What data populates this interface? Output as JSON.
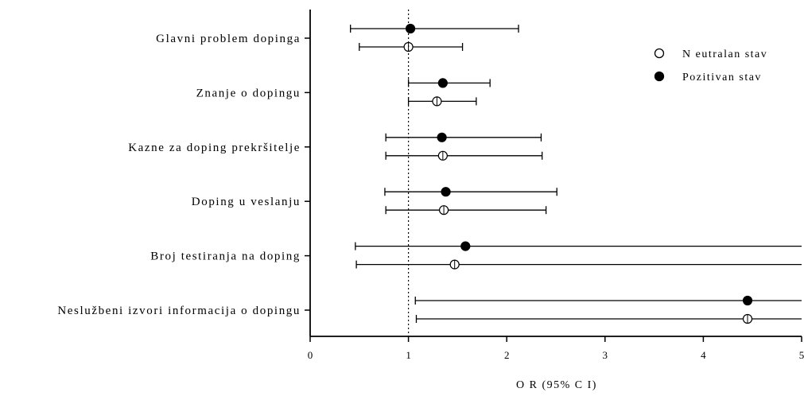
{
  "chart_data": {
    "type": "forest",
    "xlabel": "O R  (95% C I)",
    "xlim": [
      0,
      5
    ],
    "xticks": [
      "0",
      "1",
      "2",
      "3",
      "4",
      "5"
    ],
    "reference_line": 1,
    "categories": [
      "Glavni problem dopinga",
      "Znanje o dopingu",
      "Kazne za doping prekršitelje",
      "Doping u veslanju",
      "Broj testiranja na doping",
      "Neslužbeni izvori informacija o dopingu"
    ],
    "series": [
      {
        "name": "Pozitivan stav",
        "marker": "filled-circle",
        "values": [
          {
            "or": 1.02,
            "lo": 0.41,
            "hi": 2.12
          },
          {
            "or": 1.35,
            "lo": 1.0,
            "hi": 1.83
          },
          {
            "or": 1.34,
            "lo": 0.77,
            "hi": 2.35
          },
          {
            "or": 1.38,
            "lo": 0.76,
            "hi": 2.51
          },
          {
            "or": 1.58,
            "lo": 0.46,
            "hi": 5.0
          },
          {
            "or": 4.45,
            "lo": 1.07,
            "hi": 5.0
          }
        ]
      },
      {
        "name": "Neutralan stav",
        "marker": "crossed-open-circle",
        "values": [
          {
            "or": 1.0,
            "lo": 0.5,
            "hi": 1.55
          },
          {
            "or": 1.29,
            "lo": 1.0,
            "hi": 1.69
          },
          {
            "or": 1.35,
            "lo": 0.77,
            "hi": 2.36
          },
          {
            "or": 1.36,
            "lo": 0.77,
            "hi": 2.4
          },
          {
            "or": 1.47,
            "lo": 0.47,
            "hi": 5.0
          },
          {
            "or": 4.45,
            "lo": 1.08,
            "hi": 5.0
          }
        ]
      }
    ],
    "legend": {
      "position": "top-right",
      "entries": [
        {
          "label": "N eutralan stav",
          "marker": "open-circle"
        },
        {
          "label": "Pozitivan stav",
          "marker": "filled-circle"
        }
      ]
    },
    "colors": {
      "marker": "#000000",
      "reference": "#000000"
    }
  }
}
